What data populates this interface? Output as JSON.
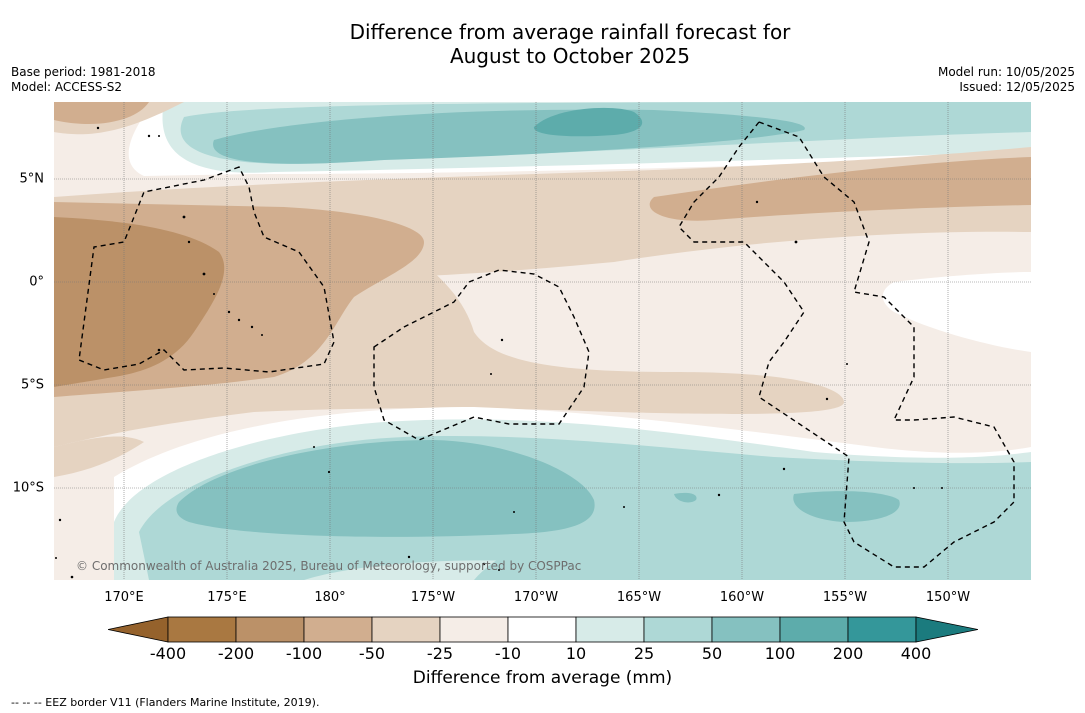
{
  "header": {
    "title_line1": "Difference from average rainfall forecast for",
    "title_line2": "August to October 2025",
    "base_period": "Base period: 1981-2018",
    "model": "Model: ACCESS-S2",
    "model_run": "Model run: 10/05/2025",
    "issued": "Issued: 12/05/2025"
  },
  "map": {
    "lon_ticks": [
      "170°E",
      "175°E",
      "180°",
      "175°W",
      "170°W",
      "165°W",
      "160°W",
      "155°W",
      "150°W"
    ],
    "lat_ticks": [
      "5°N",
      "0°",
      "5°S",
      "10°S"
    ],
    "copyright": "© Commonwealth of Australia 2025, Bureau of Meteorology, supported by COSPPac",
    "eez_note": "--  --  -- EEZ border V11 (Flanders Marine Institute, 2019)."
  },
  "colorbar": {
    "labels": [
      "-400",
      "-200",
      "-100",
      "-50",
      "-25",
      "-10",
      "10",
      "25",
      "50",
      "100",
      "200",
      "400"
    ],
    "title": "Difference from average (mm)",
    "colors": [
      "#a97841",
      "#bb9168",
      "#d1ae8f",
      "#e5d3c1",
      "#f5ede7",
      "#ffffff",
      "#d7ebe8",
      "#aed8d6",
      "#85c1c0",
      "#5dacab",
      "#34979a"
    ],
    "under_color": "#95622c",
    "over_color": "#1b7b7e"
  }
}
